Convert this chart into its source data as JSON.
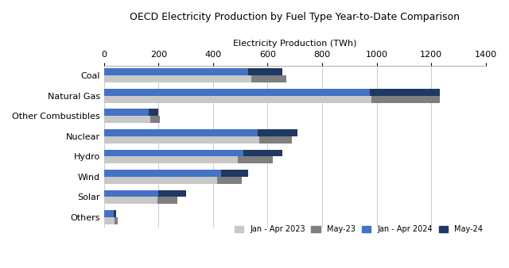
{
  "title": "OECD Electricity Production by Fuel Type Year-to-Date Comparison",
  "xlabel": "Electricity Production (TWh)",
  "categories": [
    "Coal",
    "Natural Gas",
    "Other Combustibles",
    "Nuclear",
    "Hydro",
    "Wind",
    "Solar",
    "Others"
  ],
  "series": {
    "Jan - Apr 2023": [
      540,
      980,
      170,
      570,
      490,
      415,
      195,
      40
    ],
    "May-23": [
      130,
      250,
      35,
      120,
      130,
      90,
      75,
      10
    ],
    "Jan - Apr 2024": [
      530,
      975,
      165,
      565,
      510,
      430,
      200,
      35
    ],
    "May-24": [
      125,
      255,
      35,
      145,
      145,
      100,
      100,
      10
    ]
  },
  "colors": {
    "Jan - Apr 2023": "#c8c8c8",
    "May-23": "#7f7f7f",
    "Jan - Apr 2024": "#4472c4",
    "May-24": "#1f3864"
  },
  "xlim": [
    0,
    1400
  ],
  "xticks": [
    0,
    200,
    400,
    600,
    800,
    1000,
    1200,
    1400
  ],
  "bar_height": 0.35,
  "background_color": "#ffffff",
  "figsize": [
    6.4,
    3.38
  ],
  "dpi": 100
}
